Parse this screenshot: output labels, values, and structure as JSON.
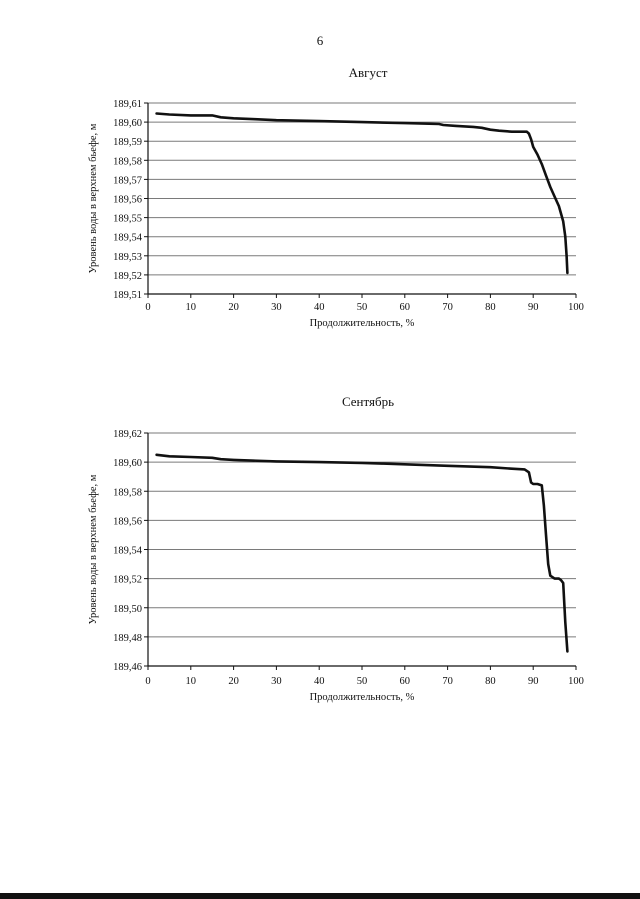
{
  "page": {
    "number": "6"
  },
  "chart_data": [
    {
      "type": "line",
      "title": "Август",
      "xlabel": "Продолжительность, %",
      "ylabel": "Уровень воды в верхнем бьефе, м",
      "xlim": [
        0,
        100
      ],
      "ylim": [
        189.51,
        189.61
      ],
      "xticks": [
        "0",
        "10",
        "20",
        "30",
        "40",
        "50",
        "60",
        "70",
        "80",
        "90",
        "100"
      ],
      "yticks": [
        "189,61",
        "189,60",
        "189,59",
        "189,58",
        "189,57",
        "189,56",
        "189,55",
        "189,54",
        "189,53",
        "189,52",
        "189,51"
      ],
      "grid": true,
      "series": [
        {
          "x": [
            2,
            5,
            10,
            15,
            17,
            20,
            25,
            30,
            40,
            50,
            60,
            68,
            69,
            72,
            76,
            78,
            80,
            82,
            85,
            87,
            88.5,
            89,
            89.5,
            90,
            91,
            92,
            93,
            94,
            95,
            96,
            97,
            97.5,
            97.8,
            98
          ],
          "y": [
            189.6045,
            189.604,
            189.6035,
            189.6035,
            189.6025,
            189.602,
            189.6015,
            189.601,
            189.6005,
            189.6,
            189.5995,
            189.599,
            189.5985,
            189.598,
            189.5975,
            189.597,
            189.596,
            189.5955,
            189.595,
            189.595,
            189.595,
            189.594,
            189.591,
            189.587,
            189.583,
            189.578,
            189.572,
            189.566,
            189.561,
            189.556,
            189.548,
            189.54,
            189.53,
            189.521
          ]
        }
      ]
    },
    {
      "type": "line",
      "title": "Сентябрь",
      "xlabel": "Продолжительность, %",
      "ylabel": "Уровень воды в верхнем бьефе, м",
      "xlim": [
        0,
        100
      ],
      "ylim": [
        189.46,
        189.62
      ],
      "xticks": [
        "0",
        "10",
        "20",
        "30",
        "40",
        "50",
        "60",
        "70",
        "80",
        "90",
        "100"
      ],
      "yticks": [
        "189,62",
        "189,60",
        "189,58",
        "189,56",
        "189,54",
        "189,52",
        "189,50",
        "189,48",
        "189,46"
      ],
      "grid": true,
      "series": [
        {
          "x": [
            2,
            5,
            10,
            15,
            17,
            20,
            30,
            40,
            50,
            55,
            60,
            70,
            80,
            85,
            88,
            89,
            89.5,
            90,
            91,
            92,
            92.5,
            93,
            93.5,
            94,
            95,
            96,
            96.5,
            97,
            97.5,
            98
          ],
          "y": [
            189.605,
            189.604,
            189.6035,
            189.603,
            189.602,
            189.6015,
            189.6005,
            189.6,
            189.5995,
            189.599,
            189.5985,
            189.5975,
            189.5965,
            189.5955,
            189.595,
            189.593,
            189.586,
            189.585,
            189.585,
            189.584,
            189.57,
            189.55,
            189.53,
            189.522,
            189.52,
            189.52,
            189.519,
            189.517,
            189.49,
            189.47
          ]
        }
      ]
    }
  ]
}
